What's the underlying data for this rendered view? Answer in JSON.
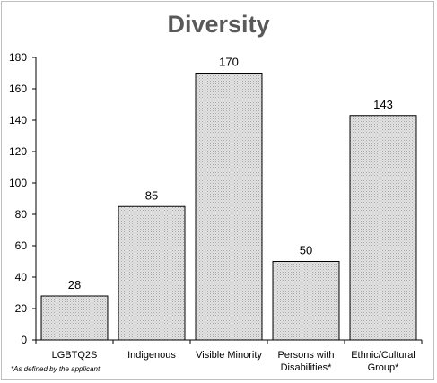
{
  "chart_data": {
    "type": "bar",
    "title": "Diversity",
    "categories": [
      [
        "LGBTQ2S"
      ],
      [
        "Indigenous"
      ],
      [
        "Visible Minority"
      ],
      [
        "Persons with",
        "Disabilities*"
      ],
      [
        "Ethnic/Cultural",
        "Group*"
      ]
    ],
    "values": [
      28,
      85,
      170,
      50,
      143
    ],
    "ylim": [
      0,
      180
    ],
    "yticks": [
      0,
      20,
      40,
      60,
      80,
      100,
      120,
      140,
      160,
      180
    ],
    "grid": false,
    "bar_fill": "#d9d9d9",
    "bar_pattern": "dotted",
    "bar_edge": "#000000"
  },
  "footnote": "*As defined by the applicant"
}
